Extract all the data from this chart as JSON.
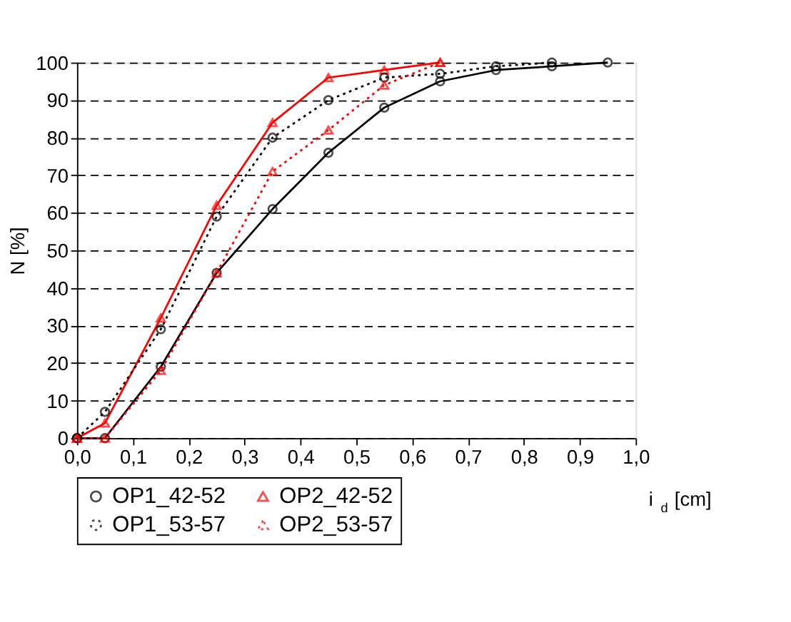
{
  "chart_data": {
    "type": "line",
    "xlabel": "i$_{d}$ [cm]",
    "ylabel": "N [%]",
    "xlim": [
      0,
      1
    ],
    "xticks": [
      {
        "value": 0,
        "label": "0,0"
      },
      {
        "value": 0.1,
        "label": "0,1"
      },
      {
        "value": 0.2,
        "label": "0,2"
      },
      {
        "value": 0.3,
        "label": "0,3"
      },
      {
        "value": 0.4,
        "label": "0,4"
      },
      {
        "value": 0.5,
        "label": "0,5"
      },
      {
        "value": 0.6,
        "label": "0,6"
      },
      {
        "value": 0.7,
        "label": "0,7"
      },
      {
        "value": 0.8,
        "label": "0,8"
      },
      {
        "value": 0.9,
        "label": "0,9"
      },
      {
        "value": 1,
        "label": "1,0"
      }
    ],
    "ylim": [
      0,
      100
    ],
    "yticks": [
      0,
      10,
      20,
      30,
      40,
      50,
      60,
      70,
      80,
      90,
      100
    ],
    "grid": "y",
    "legend": "bottom",
    "series": [
      {
        "name": "OP1_42-52",
        "color": "#000000",
        "marker": "circle",
        "line_style": "solid",
        "x": [
          0,
          0.05,
          0.15,
          0.25,
          0.35,
          0.45,
          0.55,
          0.65,
          0.75,
          0.85,
          0.95
        ],
        "values": [
          0,
          0,
          19,
          44,
          61,
          76,
          88,
          95,
          98,
          99,
          100
        ]
      },
      {
        "name": "OP2_42-52",
        "color": "#ff0000",
        "marker": "triangle",
        "line_style": "solid",
        "x": [
          0,
          0.05,
          0.15,
          0.25,
          0.35,
          0.45,
          0.55,
          0.65
        ],
        "values": [
          0,
          4,
          32,
          62,
          84,
          96,
          98,
          100
        ]
      },
      {
        "name": "OP1_53-57",
        "color": "#000000",
        "marker": "circle",
        "line_style": "dotted",
        "x": [
          0,
          0.05,
          0.15,
          0.25,
          0.35,
          0.45,
          0.55,
          0.65,
          0.75,
          0.85
        ],
        "values": [
          0,
          7,
          29,
          59,
          80,
          90,
          96,
          97,
          99,
          100
        ]
      },
      {
        "name": "OP2_53-57",
        "color": "#ff0000",
        "marker": "triangle",
        "line_style": "dotted",
        "x": [
          0,
          0.05,
          0.15,
          0.25,
          0.35,
          0.45,
          0.55,
          0.65
        ],
        "values": [
          0,
          0,
          18,
          44,
          71,
          82,
          94,
          100
        ]
      }
    ]
  }
}
